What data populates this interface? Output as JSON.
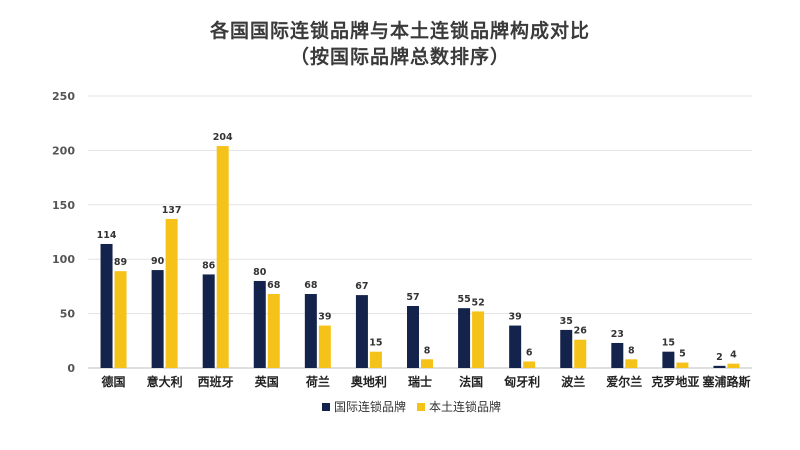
{
  "chart_data": {
    "type": "bar",
    "title": "各国国际连锁品牌与本土连锁品牌构成对比",
    "subtitle": "（按国际品牌总数排序）",
    "categories": [
      "德国",
      "意大利",
      "西班牙",
      "英国",
      "荷兰",
      "奥地利",
      "瑞士",
      "法国",
      "匈牙利",
      "波兰",
      "爱尔兰",
      "克罗地亚",
      "塞浦路斯"
    ],
    "series": [
      {
        "name": "国际连锁品牌",
        "color": "#14234b",
        "values": [
          114,
          90,
          86,
          80,
          68,
          67,
          57,
          55,
          39,
          35,
          23,
          15,
          2
        ]
      },
      {
        "name": "本土连锁品牌",
        "color": "#f5c21a",
        "values": [
          89,
          137,
          204,
          68,
          39,
          15,
          8,
          52,
          6,
          26,
          8,
          5,
          4
        ]
      }
    ],
    "ylim": [
      0,
      250
    ],
    "yticks": [
      0,
      50,
      100,
      150,
      200,
      250
    ],
    "grid": true,
    "legend_position": "bottom"
  }
}
